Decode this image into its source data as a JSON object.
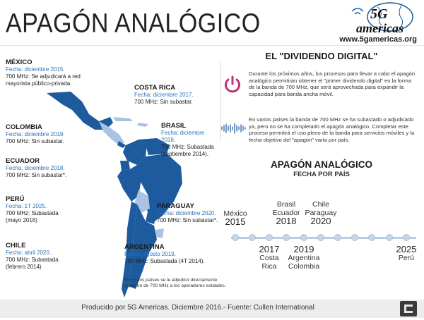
{
  "title": "APAGÓN ANALÓGICO",
  "logo": {
    "brand_top": "5G",
    "brand_bottom": "americas",
    "url": "www.5gamericas.org"
  },
  "countries": {
    "mexico": {
      "name": "MÉXICO",
      "date": "Fecha: diciembre 2015.",
      "detail": "700 MHz: Se adjudicará a red mayorista público-privada."
    },
    "costa_rica": {
      "name": "COSTA RICA",
      "date": "Fecha: diciembre 2017.",
      "detail": "700 MHz: Sin subastar."
    },
    "colombia": {
      "name": "COLOMBIA",
      "date": "Fecha: diciembre 2019.",
      "detail": "700 MHz: Sin subastar."
    },
    "brasil": {
      "name": "BRASIL",
      "date": "Fecha: diciembre 2018.",
      "detail": "700 MHz: Subastada (septiembre 2014)."
    },
    "ecuador": {
      "name": "ECUADOR",
      "date": "Fecha: diciembre 2018.",
      "detail": "700 MHz: Sin subastar*."
    },
    "peru": {
      "name": "PERÚ",
      "date": "Fecha: 1T 2025.",
      "detail": "700 MHz: Subastada (mayo 2016)"
    },
    "paraguay": {
      "name": "PARAGUAY",
      "date": "Fecha: diciembre 2020.",
      "detail": "700 MHz: Sin subastar*."
    },
    "chile": {
      "name": "CHILE",
      "date": "Fecha: abril 2020.",
      "detail": "700 MHz: Subastada (febrero 2014)"
    },
    "argentina": {
      "name": "ARGENTINA",
      "date": "Fecha: agosto 2019.",
      "detail": "700 MHz: Subastada (4T 2014)."
    }
  },
  "note": "*En estos países se le adjudicó directamente espectro de 700 MHz a los operadores estatales.",
  "dividend": {
    "title": "EL \"DIVIDENDO DIGITAL\"",
    "paragraph1": "Durante los próximos años, los procesos para llevar a cabo el apagón analógico permitirán obtener el \"primer dividendo digital\" en la forma de la banda de 700 MHz, que será aprovechada para expandir la capacidad para banda ancha móvil.",
    "paragraph2": "En varios países la banda de 700 MHz se ha subastado o adjudicado ya, pero no se ha completado el apagón analógico. Completar este proceso permitirá el uso pleno de la banda para servicios móviles y la fecha objetivo del \"apagón\" varía por país.",
    "icon_power": "power-icon",
    "icon_wave": "signal-wave-icon",
    "accent_color": "#c0307d"
  },
  "timeline": {
    "title": "APAGÓN ANALÓGICO",
    "subtitle": "FECHA POR PAÍS",
    "above": [
      {
        "lines": [
          "México"
        ],
        "year": "2015"
      },
      {
        "lines": [
          "Brasil",
          "Ecuador"
        ],
        "year": "2018"
      },
      {
        "lines": [
          "Chile",
          "Paraguay"
        ],
        "year": "2020"
      }
    ],
    "below": [
      {
        "year": "2017",
        "lines": [
          "Costa",
          "Rica"
        ]
      },
      {
        "year": "2019",
        "lines": [
          "Argentina",
          "Colombia"
        ]
      },
      {
        "year": "2025",
        "lines": [
          "Perú"
        ]
      }
    ]
  },
  "map_colors": {
    "dark": "#1d5a9e",
    "light": "#a9c4e2"
  },
  "footer": "Producido por 5G Americas. Diciembre 2016.- Fuente: Cullen International"
}
